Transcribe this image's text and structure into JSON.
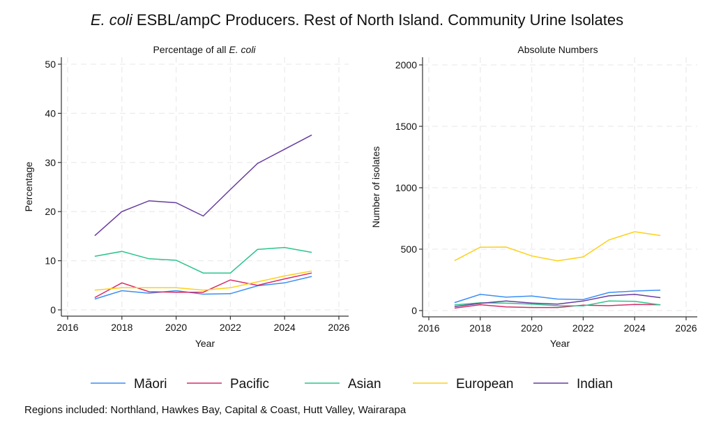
{
  "title_italic": "E. coli",
  "title_rest": " ESBL/ampC Producers. Rest of North Island. Community Urine Isolates",
  "footer": "Regions included: Northland, Hawkes Bay, Capital & Coast, Hutt Valley, Wairarapa",
  "series_styles": [
    {
      "name": "Māori",
      "color": "#3a8ef6"
    },
    {
      "name": "Pacific",
      "color": "#d62b68"
    },
    {
      "name": "Asian",
      "color": "#2bc48c"
    },
    {
      "name": "European",
      "color": "#fdd017"
    },
    {
      "name": "Indian",
      "color": "#673ca0"
    }
  ],
  "chart_data": [
    {
      "type": "line",
      "title_prefix": "Percentage of all ",
      "title_italic": "E. coli",
      "xlabel": "Year",
      "ylabel": "Percentage",
      "xlim": [
        2016,
        2026
      ],
      "ylim": [
        0,
        50
      ],
      "xticks": [
        2016,
        2018,
        2020,
        2022,
        2024,
        2026
      ],
      "yticks": [
        0,
        10,
        20,
        30,
        40,
        50
      ],
      "grid": true,
      "x": [
        2017,
        2018,
        2019,
        2020,
        2021,
        2022,
        2023,
        2024,
        2025
      ],
      "series": [
        {
          "name": "Māori",
          "values": [
            2.2,
            3.9,
            3.4,
            3.9,
            3.2,
            3.3,
            4.9,
            5.5,
            6.8
          ]
        },
        {
          "name": "Pacific",
          "values": [
            2.5,
            5.5,
            3.7,
            3.6,
            3.6,
            6.1,
            5.0,
            6.3,
            7.5
          ]
        },
        {
          "name": "Asian",
          "values": [
            10.9,
            11.9,
            10.4,
            10.1,
            7.5,
            7.5,
            12.3,
            12.7,
            11.7
          ]
        },
        {
          "name": "European",
          "values": [
            4.0,
            4.5,
            4.5,
            4.5,
            4.0,
            4.5,
            5.7,
            6.9,
            7.9
          ]
        },
        {
          "name": "Indian",
          "values": [
            15.1,
            20.0,
            22.2,
            21.8,
            19.1,
            24.5,
            29.8,
            32.7,
            35.6
          ]
        }
      ]
    },
    {
      "type": "line",
      "title_prefix": "Absolute Numbers",
      "title_italic": "",
      "xlabel": "Year",
      "ylabel": "Number of isolates",
      "xlim": [
        2016,
        2026
      ],
      "ylim": [
        0,
        2000
      ],
      "xticks": [
        2016,
        2018,
        2020,
        2022,
        2024,
        2026
      ],
      "yticks": [
        0,
        500,
        1000,
        1500,
        2000
      ],
      "grid": true,
      "x": [
        2017,
        2018,
        2019,
        2020,
        2021,
        2022,
        2023,
        2024,
        2025
      ],
      "series": [
        {
          "name": "Māori",
          "values": [
            65,
            132,
            109,
            119,
            94,
            90,
            147,
            159,
            166
          ]
        },
        {
          "name": "Pacific",
          "values": [
            20,
            48,
            30,
            25,
            25,
            44,
            40,
            50,
            48
          ]
        },
        {
          "name": "Asian",
          "values": [
            46,
            63,
            60,
            52,
            40,
            38,
            78,
            75,
            46
          ]
        },
        {
          "name": "European",
          "values": [
            407,
            516,
            517,
            445,
            405,
            437,
            575,
            642,
            611
          ]
        },
        {
          "name": "Indian",
          "values": [
            33,
            59,
            78,
            61,
            52,
            78,
            120,
            132,
            105
          ]
        }
      ]
    }
  ]
}
